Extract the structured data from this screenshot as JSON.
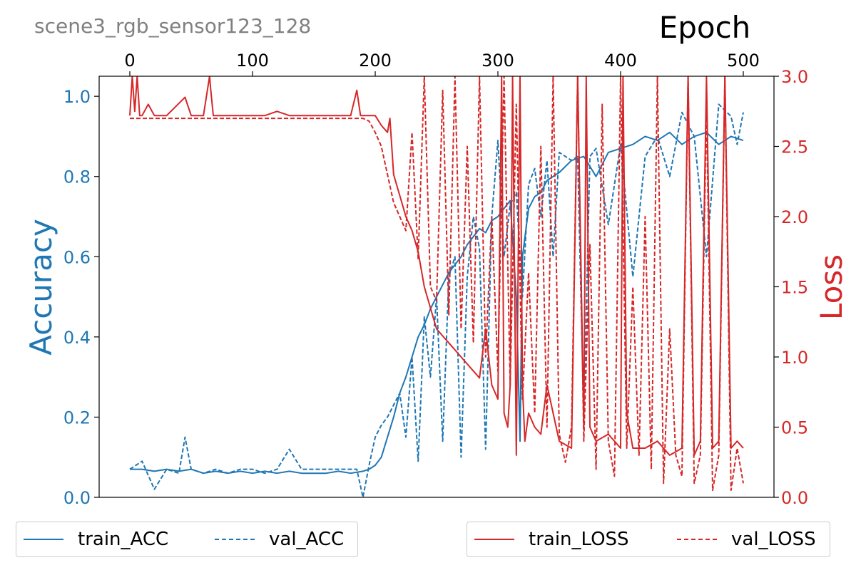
{
  "chart_data": {
    "type": "line",
    "title": "scene3_rgb_sensor123_128",
    "xlabel": "Epoch",
    "ylabel_left": "Accuracy",
    "ylabel_right": "Loss",
    "xlim": [
      -25,
      525
    ],
    "ylim_left": [
      0,
      1.05
    ],
    "ylim_right": [
      0,
      3.0
    ],
    "x_ticks": [
      "0",
      "100",
      "200",
      "300",
      "400",
      "500"
    ],
    "y_left_ticks": [
      "0.0",
      "0.2",
      "0.4",
      "0.6",
      "0.8",
      "1.0"
    ],
    "y_right_ticks": [
      "0.0",
      "0.5",
      "1.0",
      "1.5",
      "2.0",
      "2.5",
      "3.0"
    ],
    "grid": false,
    "colors": {
      "acc": "#1f77b4",
      "loss": "#d62728",
      "title": "#808080"
    },
    "series": [
      {
        "name": "train_ACC",
        "axis": "left",
        "style": "solid",
        "color": "#1f77b4",
        "x": [
          0,
          10,
          20,
          30,
          40,
          50,
          60,
          70,
          80,
          90,
          100,
          110,
          120,
          130,
          140,
          150,
          160,
          170,
          180,
          190,
          195,
          200,
          205,
          210,
          215,
          220,
          225,
          230,
          235,
          240,
          245,
          250,
          255,
          260,
          265,
          270,
          275,
          280,
          285,
          290,
          295,
          300,
          305,
          310,
          315,
          318,
          320,
          325,
          330,
          335,
          340,
          350,
          360,
          370,
          380,
          390,
          400,
          410,
          420,
          430,
          440,
          450,
          460,
          470,
          480,
          490,
          500
        ],
        "values": [
          0.07,
          0.07,
          0.065,
          0.07,
          0.065,
          0.07,
          0.06,
          0.065,
          0.06,
          0.065,
          0.06,
          0.065,
          0.06,
          0.065,
          0.06,
          0.06,
          0.06,
          0.065,
          0.06,
          0.065,
          0.07,
          0.08,
          0.1,
          0.15,
          0.2,
          0.26,
          0.3,
          0.35,
          0.4,
          0.43,
          0.47,
          0.5,
          0.53,
          0.56,
          0.58,
          0.6,
          0.63,
          0.65,
          0.67,
          0.66,
          0.69,
          0.7,
          0.72,
          0.74,
          0.5,
          0.14,
          0.6,
          0.72,
          0.75,
          0.76,
          0.79,
          0.81,
          0.84,
          0.85,
          0.8,
          0.86,
          0.87,
          0.88,
          0.9,
          0.89,
          0.91,
          0.88,
          0.9,
          0.91,
          0.88,
          0.9,
          0.89
        ]
      },
      {
        "name": "val_ACC",
        "axis": "left",
        "style": "dashed",
        "color": "#1f77b4",
        "x": [
          0,
          10,
          20,
          30,
          40,
          45,
          50,
          60,
          70,
          80,
          90,
          100,
          110,
          120,
          130,
          140,
          150,
          160,
          170,
          180,
          185,
          190,
          195,
          200,
          205,
          210,
          215,
          220,
          225,
          230,
          235,
          240,
          245,
          250,
          255,
          260,
          265,
          270,
          275,
          280,
          285,
          290,
          295,
          300,
          305,
          310,
          315,
          320,
          325,
          330,
          335,
          340,
          345,
          350,
          360,
          365,
          370,
          375,
          380,
          390,
          400,
          410,
          420,
          430,
          440,
          450,
          460,
          470,
          480,
          490,
          495,
          500
        ],
        "values": [
          0.07,
          0.09,
          0.02,
          0.07,
          0.06,
          0.15,
          0.07,
          0.06,
          0.07,
          0.06,
          0.07,
          0.07,
          0.06,
          0.07,
          0.12,
          0.07,
          0.07,
          0.07,
          0.07,
          0.07,
          0.07,
          0.0,
          0.08,
          0.15,
          0.18,
          0.2,
          0.23,
          0.26,
          0.15,
          0.35,
          0.09,
          0.45,
          0.3,
          0.5,
          0.14,
          0.55,
          0.6,
          0.1,
          0.55,
          0.7,
          0.62,
          0.12,
          0.7,
          0.89,
          0.6,
          0.73,
          0.76,
          0.5,
          0.78,
          0.82,
          0.7,
          0.84,
          0.6,
          0.86,
          0.84,
          0.85,
          0.2,
          0.85,
          0.87,
          0.68,
          0.88,
          0.55,
          0.85,
          0.9,
          0.8,
          0.96,
          0.9,
          0.6,
          0.98,
          0.95,
          0.88,
          0.96
        ]
      },
      {
        "name": "train_LOSS",
        "axis": "right",
        "style": "solid",
        "color": "#d62728",
        "x": [
          0,
          2,
          4,
          6,
          8,
          10,
          15,
          20,
          30,
          45,
          50,
          60,
          65,
          66,
          68,
          70,
          80,
          90,
          100,
          110,
          120,
          130,
          140,
          150,
          160,
          170,
          180,
          185,
          188,
          190,
          195,
          200,
          205,
          210,
          212,
          215,
          220,
          225,
          230,
          235,
          240,
          245,
          250,
          255,
          260,
          265,
          270,
          275,
          280,
          285,
          290,
          295,
          300,
          303,
          305,
          308,
          310,
          312,
          315,
          318,
          320,
          322,
          325,
          330,
          335,
          340,
          350,
          360,
          365,
          370,
          372,
          375,
          380,
          390,
          400,
          402,
          405,
          410,
          420,
          430,
          440,
          450,
          455,
          460,
          465,
          470,
          475,
          480,
          485,
          490,
          495,
          500
        ],
        "values": [
          2.72,
          3.0,
          2.75,
          3.0,
          2.72,
          2.72,
          2.8,
          2.72,
          2.72,
          2.85,
          2.72,
          2.72,
          3.0,
          2.9,
          2.72,
          2.72,
          2.72,
          2.72,
          2.72,
          2.72,
          2.75,
          2.72,
          2.72,
          2.72,
          2.72,
          2.72,
          2.72,
          2.9,
          2.72,
          2.72,
          2.72,
          2.72,
          2.65,
          2.6,
          2.7,
          2.3,
          2.15,
          2.0,
          1.9,
          1.75,
          1.5,
          1.35,
          1.2,
          1.15,
          1.1,
          1.05,
          1.0,
          0.95,
          0.9,
          0.85,
          1.2,
          0.8,
          0.7,
          3.0,
          0.6,
          0.5,
          0.8,
          3.0,
          0.3,
          3.0,
          0.8,
          0.4,
          0.6,
          0.5,
          0.45,
          0.8,
          0.4,
          0.35,
          3.0,
          0.5,
          3.0,
          0.5,
          0.4,
          0.45,
          0.35,
          3.0,
          0.6,
          0.35,
          0.35,
          0.4,
          0.3,
          0.35,
          3.0,
          0.3,
          0.4,
          3.0,
          0.35,
          0.4,
          3.0,
          0.35,
          0.4,
          0.35
        ]
      },
      {
        "name": "val_LOSS",
        "axis": "right",
        "style": "dashed",
        "color": "#d62728",
        "x": [
          0,
          10,
          20,
          30,
          40,
          50,
          60,
          70,
          80,
          90,
          100,
          110,
          120,
          130,
          140,
          150,
          160,
          170,
          180,
          190,
          195,
          200,
          205,
          210,
          215,
          220,
          225,
          230,
          235,
          240,
          245,
          250,
          255,
          260,
          265,
          270,
          275,
          280,
          285,
          290,
          295,
          300,
          305,
          310,
          315,
          320,
          325,
          330,
          335,
          340,
          345,
          350,
          355,
          360,
          365,
          370,
          375,
          380,
          385,
          390,
          395,
          400,
          405,
          410,
          415,
          420,
          425,
          430,
          435,
          440,
          445,
          450,
          455,
          460,
          465,
          470,
          475,
          480,
          485,
          490,
          495,
          500
        ],
        "values": [
          2.7,
          2.7,
          2.7,
          2.7,
          2.7,
          2.7,
          2.7,
          2.7,
          2.7,
          2.7,
          2.7,
          2.7,
          2.7,
          2.7,
          2.7,
          2.7,
          2.7,
          2.7,
          2.7,
          2.7,
          2.68,
          2.6,
          2.5,
          2.3,
          2.1,
          2.0,
          1.9,
          2.6,
          1.7,
          3.0,
          1.5,
          1.4,
          2.9,
          1.3,
          3.0,
          1.2,
          2.5,
          1.1,
          3.0,
          1.0,
          2.0,
          0.9,
          3.0,
          0.8,
          2.8,
          0.7,
          1.6,
          0.6,
          2.5,
          0.5,
          3.0,
          0.45,
          0.25,
          0.5,
          3.0,
          0.4,
          1.8,
          0.2,
          2.8,
          0.4,
          0.15,
          3.0,
          0.35,
          1.5,
          0.3,
          2.0,
          0.2,
          3.0,
          0.1,
          1.2,
          0.3,
          0.15,
          3.0,
          0.1,
          0.3,
          2.8,
          0.05,
          0.3,
          3.0,
          0.05,
          0.35,
          0.1
        ]
      }
    ]
  }
}
